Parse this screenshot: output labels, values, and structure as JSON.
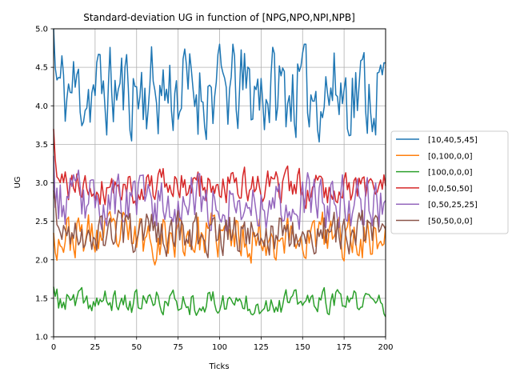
{
  "chart_data": {
    "type": "line",
    "title": "Standard-deviation UG in function of [NPG,NPO,NPI,NPB]",
    "xlabel": "Ticks",
    "ylabel": "UG",
    "xlim": [
      0,
      200
    ],
    "ylim": [
      1.0,
      5.0
    ],
    "xticks": [
      0,
      25,
      50,
      75,
      100,
      125,
      150,
      175,
      200
    ],
    "yticks": [
      1.0,
      1.5,
      2.0,
      2.5,
      3.0,
      3.5,
      4.0,
      4.5,
      5.0
    ],
    "xtick_labels": [
      "0",
      "25",
      "50",
      "75",
      "100",
      "125",
      "150",
      "175",
      "200"
    ],
    "ytick_labels": [
      "1.0",
      "1.5",
      "2.0",
      "2.5",
      "3.0",
      "3.5",
      "4.0",
      "4.5",
      "5.0"
    ],
    "grid": true,
    "legend_position": "center-right outside",
    "x": {
      "start": 0,
      "end": 200,
      "step": 1
    },
    "series": [
      {
        "name": "[10,40,5,45]",
        "color": "#1f77b4",
        "start": 5.0,
        "mean": 4.2,
        "amp": 0.35,
        "clampMin": 3.5,
        "clampMax": 4.8,
        "seed": 11
      },
      {
        "name": "[0,100,0,0]",
        "color": "#ff7f0e",
        "start": 2.35,
        "mean": 2.3,
        "amp": 0.17,
        "clampMin": 1.9,
        "clampMax": 2.65,
        "seed": 23
      },
      {
        "name": "[100,0,0,0]",
        "color": "#2ca02c",
        "start": 1.65,
        "mean": 1.45,
        "amp": 0.09,
        "clampMin": 1.2,
        "clampMax": 1.7,
        "seed": 37
      },
      {
        "name": "[0,0,50,50]",
        "color": "#d62728",
        "start": 3.7,
        "mean": 2.95,
        "amp": 0.13,
        "clampMin": 2.55,
        "clampMax": 3.3,
        "seed": 41
      },
      {
        "name": "[0,50,25,25]",
        "color": "#9467bd",
        "start": 3.35,
        "mean": 2.75,
        "amp": 0.2,
        "clampMin": 2.2,
        "clampMax": 3.5,
        "seed": 53
      },
      {
        "name": "[50,50,0,0]",
        "color": "#8c564b",
        "start": 2.9,
        "mean": 2.35,
        "amp": 0.15,
        "clampMin": 1.95,
        "clampMax": 2.75,
        "seed": 67
      }
    ]
  }
}
